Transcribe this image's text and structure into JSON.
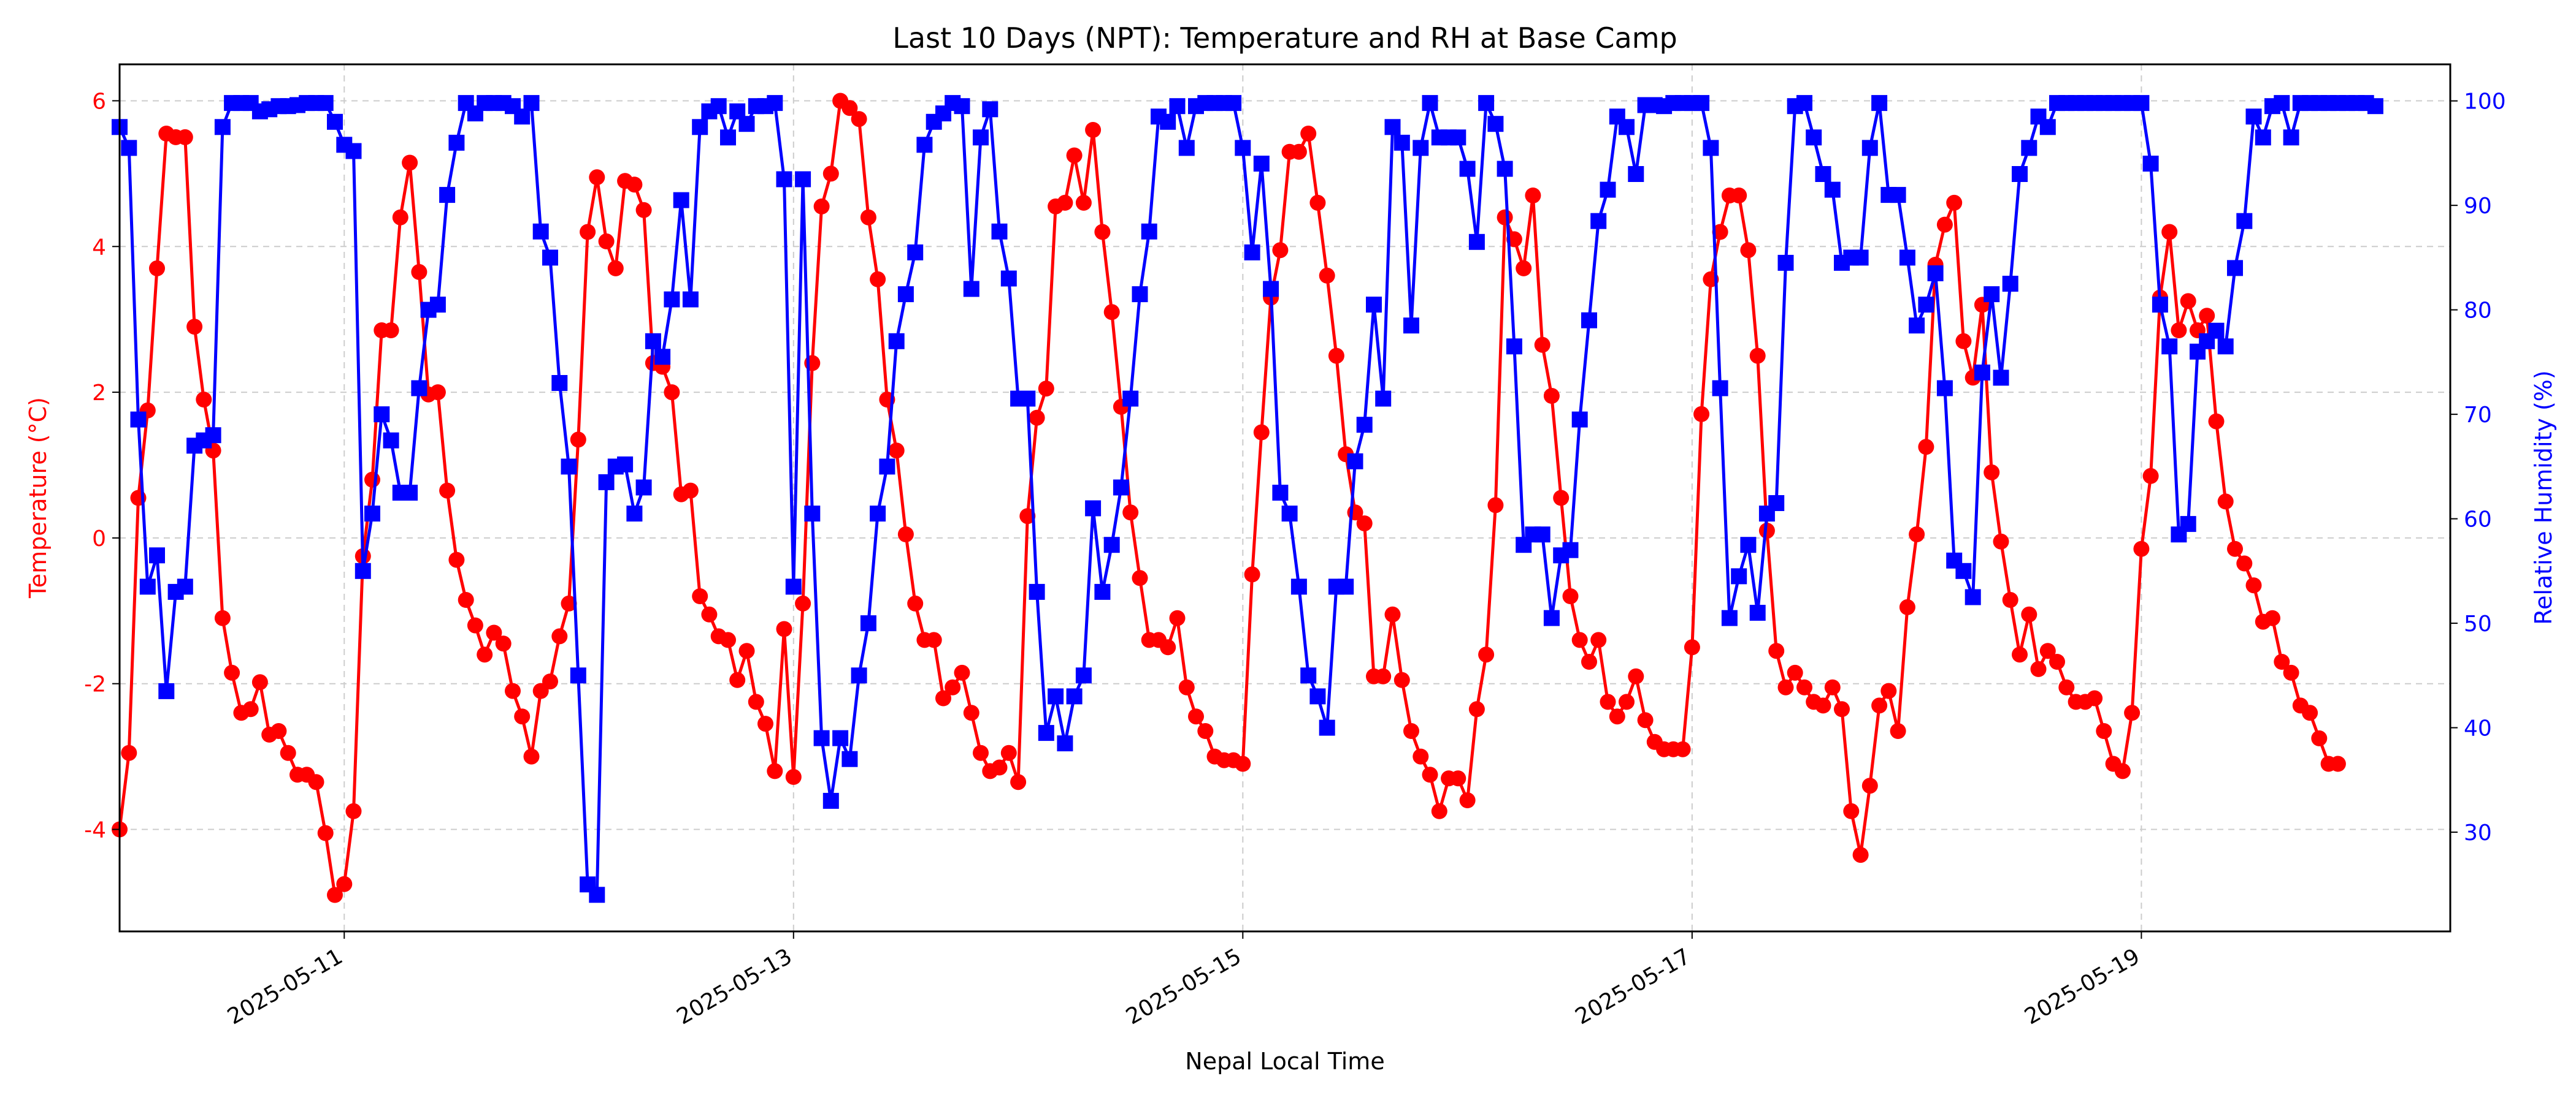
{
  "chart_data": {
    "type": "line",
    "title": "Last 10 Days (NPT): Temperature and RH at Base Camp",
    "xlabel": "Nepal Local Time",
    "ylabel_left": "Temperature (°C)",
    "ylabel_right": "Relative Humidity (%)",
    "x_range": [
      "2025-05-10T00:00",
      "2025-05-20T09:00"
    ],
    "x_ticks": [
      "2025-05-11",
      "2025-05-13",
      "2025-05-15",
      "2025-05-17",
      "2025-05-19"
    ],
    "ylim_left": [
      -5.4,
      6.5
    ],
    "yticks_left": [
      -4,
      -2,
      0,
      2,
      4,
      6
    ],
    "ylim_right": [
      20.5,
      103.5
    ],
    "yticks_right": [
      30,
      40,
      50,
      60,
      70,
      80,
      90,
      100
    ],
    "grid": true,
    "colors": {
      "temperature": "#ff0000",
      "humidity": "#0000ff"
    },
    "interval_hours": 1,
    "series": [
      {
        "axis": "left",
        "marker": "circle",
        "color": "#ff0000",
        "start": "2025-05-10T00:00",
        "step_hours": 1,
        "values": [
          -4.0,
          -2.95,
          0.55,
          1.75,
          3.7,
          5.55,
          5.5,
          5.5,
          2.9,
          1.9,
          1.2,
          -1.1,
          -1.85,
          -2.4,
          -2.35,
          -1.98,
          -2.7,
          -2.65,
          -2.95,
          -3.25,
          -3.25,
          -3.35,
          -4.05,
          -4.9,
          -4.75,
          -3.75,
          -0.25,
          0.8,
          2.85,
          2.85,
          4.4,
          5.15,
          3.65,
          1.97,
          2.0,
          0.65,
          -0.3,
          -0.85,
          -1.2,
          -1.6,
          -1.3,
          -1.45,
          -2.1,
          -2.45,
          -3.0,
          -2.1,
          -1.97,
          -1.35,
          -0.9,
          1.35,
          4.2,
          4.95,
          4.07,
          3.7,
          4.9,
          4.85,
          4.5,
          2.4,
          2.35,
          2.0,
          0.6,
          0.65,
          -0.8,
          -1.05,
          -1.35,
          -1.4,
          -1.95,
          -1.55,
          -2.25,
          -2.55,
          -3.2,
          -1.25,
          -3.28,
          -0.9,
          2.4,
          4.55,
          5.0,
          6.0,
          5.9,
          5.75,
          4.4,
          3.55,
          1.9,
          1.2,
          0.05,
          -0.9,
          -1.4,
          -1.4,
          -2.2,
          -2.05,
          -1.85,
          -2.4,
          -2.95,
          -3.2,
          -3.15,
          -2.95,
          -3.35,
          0.3,
          1.65,
          2.05,
          4.55,
          4.6,
          5.25,
          4.6,
          5.6,
          4.2,
          3.1,
          1.8,
          0.35,
          -0.55,
          -1.4,
          -1.4,
          -1.5,
          -1.1,
          -2.05,
          -2.45,
          -2.65,
          -3.0,
          -3.05,
          -3.05,
          -3.1,
          -0.5,
          1.45,
          3.3,
          3.95,
          5.3,
          5.3,
          5.55,
          4.6,
          3.6,
          2.5,
          1.15,
          0.35,
          0.2,
          -1.9,
          -1.9,
          -1.05,
          -1.95,
          -2.65,
          -3.0,
          -3.25,
          -3.75,
          -3.3,
          -3.3,
          -3.6,
          -2.35,
          -1.6,
          0.45,
          4.4,
          4.1,
          3.7,
          4.7,
          2.65,
          1.95,
          0.55,
          -0.8,
          -1.4,
          -1.7,
          -1.4,
          -2.25,
          -2.45,
          -2.25,
          -1.9,
          -2.5,
          -2.8,
          -2.9,
          -2.9,
          -2.9,
          -1.5,
          1.7,
          3.55,
          4.2,
          4.7,
          4.7,
          3.95,
          2.5,
          0.1,
          -1.55,
          -2.05,
          -1.85,
          -2.05,
          -2.25,
          -2.3,
          -2.05,
          -2.35,
          -3.75,
          -4.35,
          -3.4,
          -2.3,
          -2.1,
          -2.65,
          -0.95,
          0.05,
          1.25,
          3.75,
          4.3,
          4.6,
          2.7,
          2.2,
          3.2,
          0.9,
          -0.05,
          -0.85,
          -1.6,
          -1.05,
          -1.8,
          -1.55,
          -1.7,
          -2.05,
          -2.25,
          -2.25,
          -2.2,
          -2.65,
          -3.1,
          -3.2,
          -2.4,
          -0.15,
          0.85,
          3.3,
          4.2,
          2.85,
          3.25,
          2.85,
          3.05,
          1.6,
          0.5,
          -0.15,
          -0.35,
          -0.65,
          -1.15,
          -1.1,
          -1.7,
          -1.85,
          -2.3,
          -2.4,
          -2.75,
          -3.1,
          -3.1
        ]
      },
      {
        "axis": "right",
        "marker": "square",
        "color": "#0000ff",
        "start": "2025-05-10T00:00",
        "step_hours": 1,
        "values": [
          97.5,
          95.5,
          69.5,
          53.5,
          56.5,
          43.5,
          53.0,
          53.5,
          67.0,
          67.5,
          68.0,
          97.5,
          99.8,
          99.8,
          99.8,
          99.0,
          99.2,
          99.5,
          99.5,
          99.6,
          99.8,
          99.8,
          99.8,
          98.0,
          95.8,
          95.2,
          55.0,
          60.5,
          70.0,
          67.5,
          62.5,
          62.5,
          72.5,
          80.0,
          80.5,
          91.0,
          96.0,
          99.8,
          98.8,
          99.8,
          99.8,
          99.8,
          99.5,
          98.5,
          99.8,
          87.5,
          85.0,
          73.0,
          65.0,
          45.0,
          25.0,
          24.0,
          63.5,
          65.0,
          65.2,
          60.5,
          63.0,
          77.0,
          75.5,
          81.0,
          90.5,
          81.0,
          97.5,
          99.0,
          99.5,
          96.5,
          99.0,
          97.8,
          99.5,
          99.5,
          99.8,
          92.5,
          53.5,
          92.5,
          60.5,
          39.0,
          33.0,
          39.0,
          37.0,
          45.0,
          50.0,
          60.5,
          65.0,
          77.0,
          81.5,
          85.5,
          95.8,
          98.0,
          98.8,
          99.8,
          99.5,
          82.0,
          96.5,
          99.2,
          87.5,
          83.0,
          71.5,
          71.5,
          53.0,
          39.5,
          43.0,
          38.5,
          43.0,
          45.0,
          61.0,
          53.0,
          57.5,
          63.0,
          71.5,
          81.5,
          87.5,
          98.5,
          98.0,
          99.5,
          95.5,
          99.5,
          99.8,
          99.8,
          99.8,
          99.8,
          95.5,
          85.5,
          94.0,
          82.0,
          62.5,
          60.5,
          53.5,
          45.0,
          43.0,
          40.0,
          53.5,
          53.5,
          65.5,
          69.0,
          80.5,
          71.5,
          97.5,
          96.0,
          78.5,
          95.5,
          99.8,
          96.5,
          96.5,
          96.5,
          93.5,
          86.5,
          99.8,
          97.8,
          93.5,
          76.5,
          57.5,
          58.5,
          58.5,
          50.5,
          56.5,
          57.0,
          69.5,
          79.0,
          88.5,
          91.5,
          98.5,
          97.5,
          93.0,
          99.6,
          99.6,
          99.5,
          99.8,
          99.8,
          99.8,
          99.8,
          95.5,
          72.5,
          50.5,
          54.5,
          57.5,
          51.0,
          60.5,
          61.5,
          84.5,
          99.5,
          99.8,
          96.5,
          93.0,
          91.5,
          84.5,
          85.0,
          85.0,
          95.5,
          99.8,
          91.0,
          91.0,
          85.0,
          78.5,
          80.5,
          83.5,
          72.5,
          56.0,
          55.0,
          52.5,
          74.0,
          81.5,
          73.5,
          82.5,
          93.0,
          95.5,
          98.5,
          97.5,
          99.8,
          99.8,
          99.8,
          99.8,
          99.8,
          99.8,
          99.8,
          99.8,
          99.8,
          99.8,
          94.0,
          80.5,
          76.5,
          58.5,
          59.5,
          76.0,
          77.0,
          78.0,
          76.5,
          84.0,
          88.5,
          98.5,
          96.5,
          99.5,
          99.8,
          96.5,
          99.8,
          99.8,
          99.8,
          99.8,
          99.8,
          99.8,
          99.8,
          99.8,
          99.5
        ]
      }
    ]
  }
}
